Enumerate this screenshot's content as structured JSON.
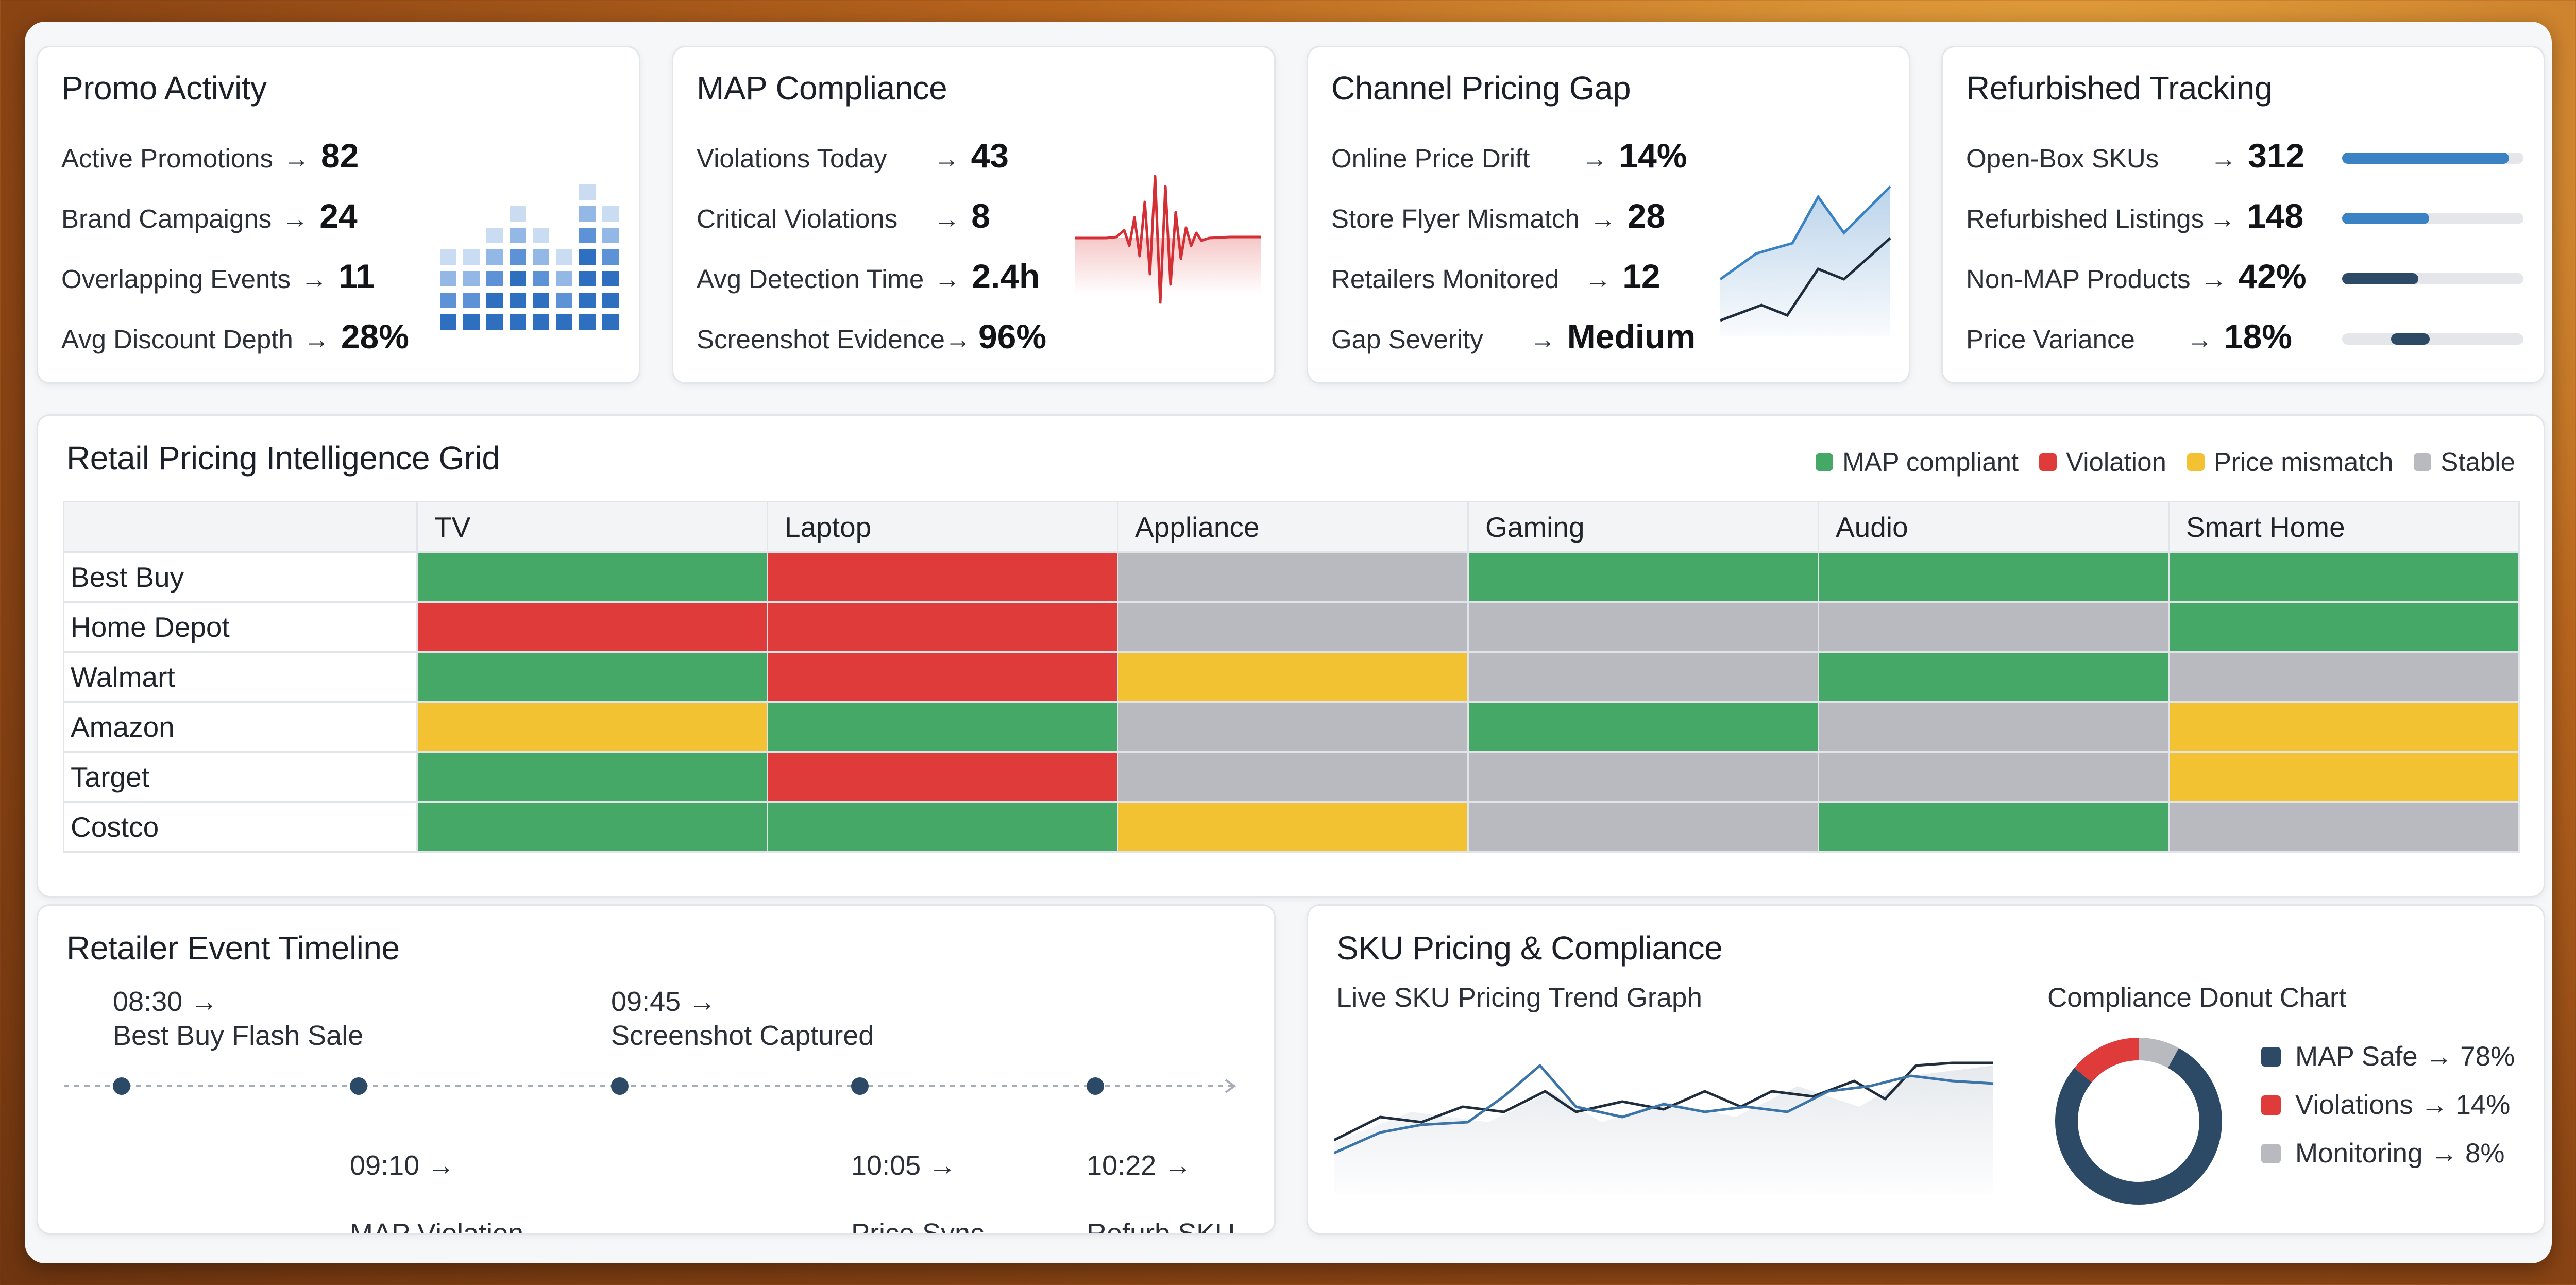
{
  "colors": {
    "green": "#45a866",
    "red": "#e03b3b",
    "yellow": "#f3c233",
    "gray": "#b8babf",
    "navy": "#2c4a66",
    "blue": "#3b82c4"
  },
  "promo": {
    "title": "Promo Activity",
    "rows": [
      {
        "label": "Active Promotions",
        "arrow": "→",
        "value": "82"
      },
      {
        "label": "Brand Campaigns",
        "arrow": "→",
        "value": "24"
      },
      {
        "label": "Overlapping Events",
        "arrow": "→",
        "value": "11"
      },
      {
        "label": "Avg Discount Depth",
        "arrow": "→",
        "value": "28%"
      }
    ]
  },
  "map": {
    "title": "MAP Compliance",
    "rows": [
      {
        "label": "Violations Today",
        "arrow": "→",
        "value": "43"
      },
      {
        "label": "Critical Violations",
        "arrow": "→",
        "value": "8"
      },
      {
        "label": "Avg Detection Time",
        "arrow": "→",
        "value": "2.4h"
      },
      {
        "label": "Screenshot Evidence",
        "arrow": "→",
        "value": "96%"
      }
    ]
  },
  "channel": {
    "title": "Channel Pricing Gap",
    "rows": [
      {
        "label": "Online Price Drift",
        "arrow": "→",
        "value": "14%"
      },
      {
        "label": "Store Flyer Mismatch",
        "arrow": "→",
        "value": "28"
      },
      {
        "label": "Retailers Monitored",
        "arrow": "→",
        "value": "12"
      },
      {
        "label": "Gap Severity",
        "arrow": "→",
        "value": "Medium"
      }
    ]
  },
  "refurb": {
    "title": "Refurbished Tracking",
    "rows": [
      {
        "label": "Open-Box SKUs",
        "arrow": "→",
        "value": "312",
        "bar_fill": 0.92,
        "bar_color": "#3b82c4"
      },
      {
        "label": "Refurbished Listings",
        "arrow": "→",
        "value": "148",
        "bar_fill": 0.48,
        "bar_color": "#3b82c4"
      },
      {
        "label": "Non-MAP Products",
        "arrow": "→",
        "value": "42%",
        "bar_fill": 0.42,
        "bar_color": "#2c4a66"
      },
      {
        "label": "Price Variance",
        "arrow": "→",
        "value": "18%",
        "bar_fill": 0.18,
        "bar_color": "#2c4a66"
      }
    ]
  },
  "grid": {
    "title": "Retail Pricing Intelligence Grid",
    "legend": [
      {
        "label": "MAP compliant",
        "color": "#45a866"
      },
      {
        "label": "Violation",
        "color": "#e03b3b"
      },
      {
        "label": "Price mismatch",
        "color": "#f3c233"
      },
      {
        "label": "Stable",
        "color": "#b8babf"
      }
    ],
    "columns": [
      "TV",
      "Laptop",
      "Appliance",
      "Gaming",
      "Audio",
      "Smart Home"
    ],
    "rows": [
      {
        "retailer": "Best Buy",
        "status": [
          "green",
          "red",
          "gray",
          "green",
          "green",
          "green"
        ]
      },
      {
        "retailer": "Home Depot",
        "status": [
          "red",
          "red",
          "gray",
          "gray",
          "gray",
          "green"
        ]
      },
      {
        "retailer": "Walmart",
        "status": [
          "green",
          "red",
          "yellow",
          "gray",
          "green",
          "gray"
        ]
      },
      {
        "retailer": "Amazon",
        "status": [
          "yellow",
          "green",
          "gray",
          "green",
          "gray",
          "yellow"
        ]
      },
      {
        "retailer": "Target",
        "status": [
          "green",
          "red",
          "gray",
          "gray",
          "gray",
          "yellow"
        ]
      },
      {
        "retailer": "Costco",
        "status": [
          "green",
          "green",
          "yellow",
          "gray",
          "green",
          "gray"
        ]
      }
    ]
  },
  "timeline": {
    "title": "Retailer Event Timeline",
    "events": [
      {
        "time": "08:30 →",
        "text": "Best Buy Flash Sale",
        "pos": "above"
      },
      {
        "time": "09:10 →",
        "text": "MAP Violation\nDetected",
        "pos": "below"
      },
      {
        "time": "09:45 →",
        "text": "Screenshot Captured",
        "pos": "above"
      },
      {
        "time": "10:05 →",
        "text": "Price Sync\nUpdated",
        "pos": "below"
      },
      {
        "time": "10:22 →",
        "text": "Refurb SKU\nAdded",
        "pos": "below"
      }
    ]
  },
  "sku": {
    "title": "SKU Pricing & Compliance",
    "trend_label": "Live SKU Pricing Trend Graph",
    "donut_label": "Compliance Donut Chart",
    "donut": [
      {
        "label": "MAP Safe",
        "arrow": "→",
        "value": "78%",
        "pct": 78,
        "color": "#2c4a66"
      },
      {
        "label": "Violations",
        "arrow": "→",
        "value": "14%",
        "pct": 14,
        "color": "#e03b3b"
      },
      {
        "label": "Monitoring",
        "arrow": "→",
        "value": "8%",
        "pct": 8,
        "color": "#b8babf"
      }
    ]
  }
}
